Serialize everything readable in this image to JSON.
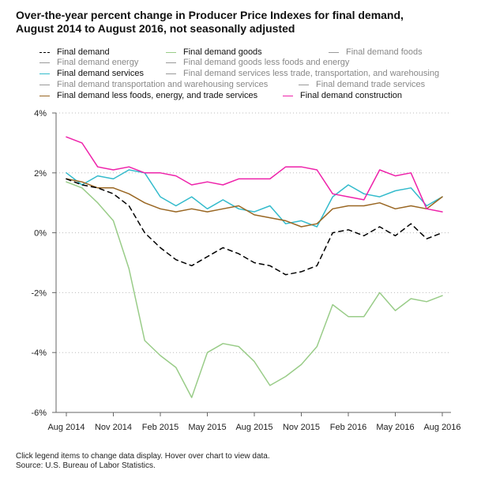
{
  "chart_data": {
    "type": "line",
    "title_line1": "Over-the-year percent change in Producer Price Indexes for final demand,",
    "title_line2": "August 2014 to August 2016, not seasonally adjusted",
    "ylim": [
      -6,
      4
    ],
    "y_ticks": [
      "4%",
      "2%",
      "0%",
      "-2%",
      "-4%",
      "-6%"
    ],
    "y_tick_values": [
      4,
      2,
      0,
      -2,
      -4,
      -6
    ],
    "x": [
      "Aug 2014",
      "Sep 2014",
      "Oct 2014",
      "Nov 2014",
      "Dec 2014",
      "Jan 2015",
      "Feb 2015",
      "Mar 2015",
      "Apr 2015",
      "May 2015",
      "Jun 2015",
      "Jul 2015",
      "Aug 2015",
      "Sep 2015",
      "Oct 2015",
      "Nov 2015",
      "Dec 2015",
      "Jan 2016",
      "Feb 2016",
      "Mar 2016",
      "Apr 2016",
      "May 2016",
      "Jun 2016",
      "Jul 2016",
      "Aug 2016"
    ],
    "x_tick_labels": [
      {
        "index": 0,
        "label": "Aug 2014"
      },
      {
        "index": 3,
        "label": "Nov 2014"
      },
      {
        "index": 6,
        "label": "Feb 2015"
      },
      {
        "index": 9,
        "label": "May 2015"
      },
      {
        "index": 12,
        "label": "Aug 2015"
      },
      {
        "index": 15,
        "label": "Nov 2015"
      },
      {
        "index": 18,
        "label": "Feb 2016"
      },
      {
        "index": 21,
        "label": "May 2016"
      },
      {
        "index": 24,
        "label": "Aug 2016"
      }
    ],
    "legend": [
      {
        "name": "Final demand",
        "color": "#000000",
        "style": "dashed",
        "active": true
      },
      {
        "name": "Final demand goods",
        "color": "#99cc88",
        "style": "solid",
        "active": true
      },
      {
        "name": "Final demand foods",
        "color": "#999999",
        "style": "solid",
        "active": false
      },
      {
        "name": "Final demand energy",
        "color": "#999999",
        "style": "solid",
        "active": false
      },
      {
        "name": "Final demand goods less foods and energy",
        "color": "#999999",
        "style": "solid",
        "active": false
      },
      {
        "name": "Final demand services",
        "color": "#33bbcc",
        "style": "solid",
        "active": true
      },
      {
        "name": "Final demand services less trade, transportation, and warehousing",
        "color": "#999999",
        "style": "solid",
        "active": false
      },
      {
        "name": "Final demand transportation and warehousing services",
        "color": "#999999",
        "style": "solid",
        "active": false
      },
      {
        "name": "Final demand trade services",
        "color": "#999999",
        "style": "solid",
        "active": false
      },
      {
        "name": "Final demand less foods, energy, and trade services",
        "color": "#996622",
        "style": "solid",
        "active": true
      },
      {
        "name": "Final demand construction",
        "color": "#ee22aa",
        "style": "solid",
        "active": true
      }
    ],
    "series": [
      {
        "name": "Final demand",
        "color": "#000000",
        "dash": true,
        "values": [
          1.8,
          1.6,
          1.5,
          1.3,
          0.9,
          0.0,
          -0.5,
          -0.9,
          -1.1,
          -0.8,
          -0.5,
          -0.7,
          -1.0,
          -1.1,
          -1.4,
          -1.3,
          -1.1,
          0.0,
          0.1,
          -0.1,
          0.2,
          -0.1,
          0.3,
          -0.2,
          0.0
        ]
      },
      {
        "name": "Final demand goods",
        "color": "#99cc88",
        "dash": false,
        "values": [
          1.7,
          1.5,
          1.0,
          0.4,
          -1.2,
          -3.6,
          -4.1,
          -4.5,
          -5.5,
          -4.0,
          -3.7,
          -3.8,
          -4.3,
          -5.1,
          -4.8,
          -4.4,
          -3.8,
          -2.4,
          -2.8,
          -2.8,
          -2.0,
          -2.6,
          -2.2,
          -2.3,
          -2.1
        ]
      },
      {
        "name": "Final demand services",
        "color": "#33bbcc",
        "dash": false,
        "values": [
          2.0,
          1.6,
          1.9,
          1.8,
          2.1,
          2.0,
          1.2,
          0.9,
          1.2,
          0.8,
          1.1,
          0.8,
          0.7,
          0.9,
          0.3,
          0.4,
          0.2,
          1.2,
          1.6,
          1.3,
          1.2,
          1.4,
          1.5,
          0.9,
          1.2
        ]
      },
      {
        "name": "Final demand less foods, energy, and trade services",
        "color": "#996622",
        "dash": false,
        "values": [
          1.8,
          1.7,
          1.5,
          1.5,
          1.3,
          1.0,
          0.8,
          0.7,
          0.8,
          0.7,
          0.8,
          0.9,
          0.6,
          0.5,
          0.4,
          0.2,
          0.3,
          0.8,
          0.9,
          0.9,
          1.0,
          0.8,
          0.9,
          0.8,
          1.2
        ]
      },
      {
        "name": "Final demand construction",
        "color": "#ee22aa",
        "dash": false,
        "values": [
          3.2,
          3.0,
          2.2,
          2.1,
          2.2,
          2.0,
          2.0,
          1.9,
          1.6,
          1.7,
          1.6,
          1.8,
          1.8,
          1.8,
          2.2,
          2.2,
          2.1,
          1.3,
          1.2,
          1.1,
          2.1,
          1.9,
          2.0,
          0.8,
          0.7
        ]
      }
    ]
  },
  "footer": {
    "line1": "Click legend items to change data display. Hover over chart to view data.",
    "line2": "Source: U.S. Bureau of Labor Statistics."
  }
}
